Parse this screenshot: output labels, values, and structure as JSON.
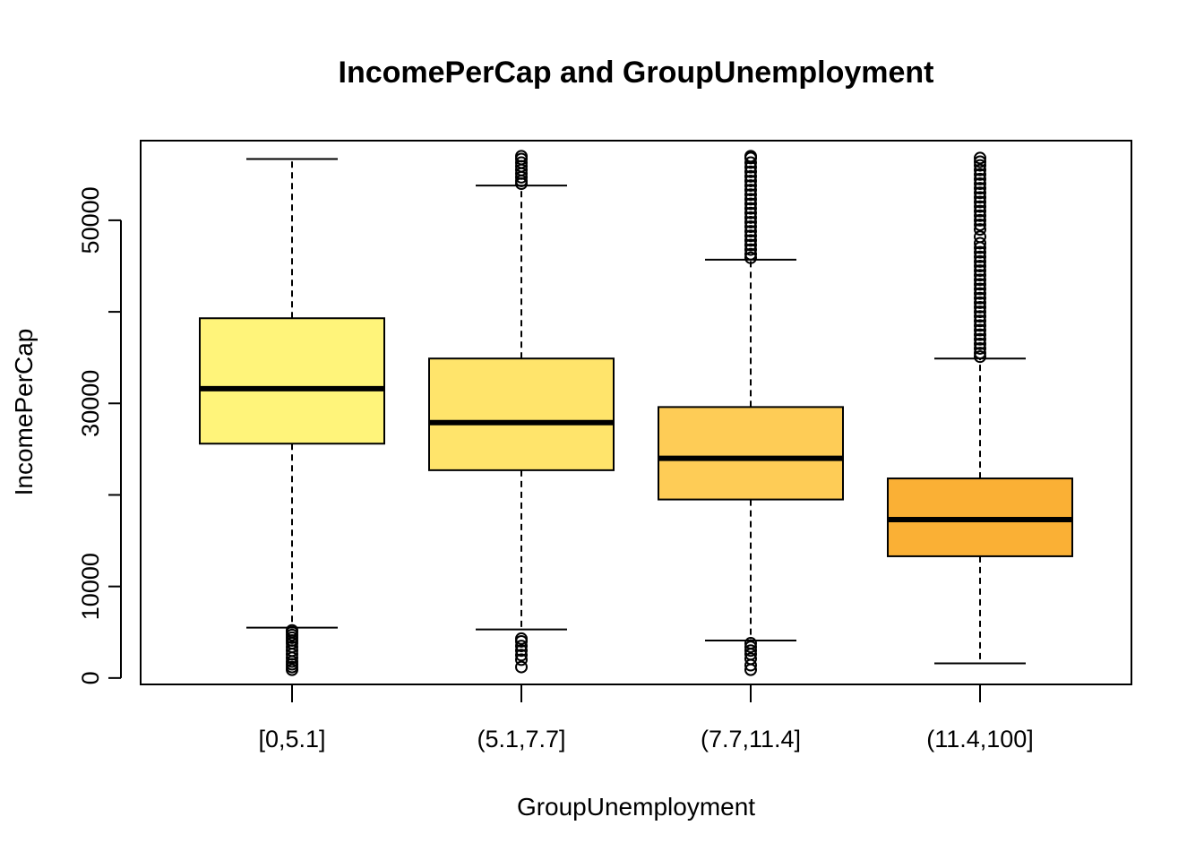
{
  "chart_data": {
    "type": "box",
    "title": "IncomePerCap and GroupUnemployment",
    "xlabel": "GroupUnemployment",
    "ylabel": "IncomePerCap",
    "ylim": [
      -700,
      58700
    ],
    "yticks": [
      0,
      10000,
      20000,
      30000,
      40000,
      50000
    ],
    "ytick_labels": [
      "0",
      "10000",
      "",
      "30000",
      "",
      "50000"
    ],
    "categories": [
      "[0,5.1]",
      "(5.1,7.7]",
      "(7.7,11.4]",
      "(11.4,100]"
    ],
    "colors": [
      "#FFF47A",
      "#FFE46B",
      "#FECC56",
      "#FAB035"
    ],
    "boxes": [
      {
        "whisker_low": 5500,
        "q1": 25600,
        "median": 31600,
        "q3": 39300,
        "whisker_high": 56700,
        "outliers_low": [
          900,
          1200,
          1500,
          1800,
          2200,
          2600,
          3000,
          3400,
          3800,
          4100,
          4400,
          4700,
          5000,
          5200
        ],
        "outliers_high": []
      },
      {
        "whisker_low": 5300,
        "q1": 22700,
        "median": 27900,
        "q3": 34900,
        "whisker_high": 53800,
        "outliers_low": [
          1200,
          2000,
          2500,
          3000,
          3500,
          4000,
          4300
        ],
        "outliers_high": [
          54000,
          54300,
          54700,
          55100,
          55500,
          55900,
          56300,
          56700,
          57000
        ]
      },
      {
        "whisker_low": 4100,
        "q1": 19500,
        "median": 24000,
        "q3": 29600,
        "whisker_high": 45700,
        "outliers_low": [
          900,
          1400,
          2100,
          2600,
          3000,
          3400,
          3800
        ],
        "outliers_high": [
          45900,
          46300,
          46800,
          47300,
          47800,
          48300,
          48800,
          49300,
          49800,
          50300,
          50800,
          51300,
          51800,
          52300,
          52800,
          53300,
          53800,
          54300,
          54800,
          55300,
          55800,
          56300,
          56800,
          57000
        ]
      },
      {
        "whisker_low": 1600,
        "q1": 13300,
        "median": 17300,
        "q3": 21800,
        "whisker_high": 34900,
        "outliers_low": [],
        "outliers_high": [
          35100,
          35500,
          36000,
          36500,
          37000,
          37500,
          38000,
          38500,
          39000,
          39500,
          40000,
          40500,
          41000,
          41500,
          42000,
          42500,
          43000,
          43500,
          44000,
          44500,
          45000,
          45500,
          46000,
          46500,
          47000,
          47500,
          48200,
          49000,
          49500,
          50000,
          50500,
          51000,
          51500,
          52000,
          52500,
          53000,
          53500,
          54000,
          54500,
          55000,
          55500,
          56000,
          56400,
          56800
        ]
      }
    ]
  }
}
